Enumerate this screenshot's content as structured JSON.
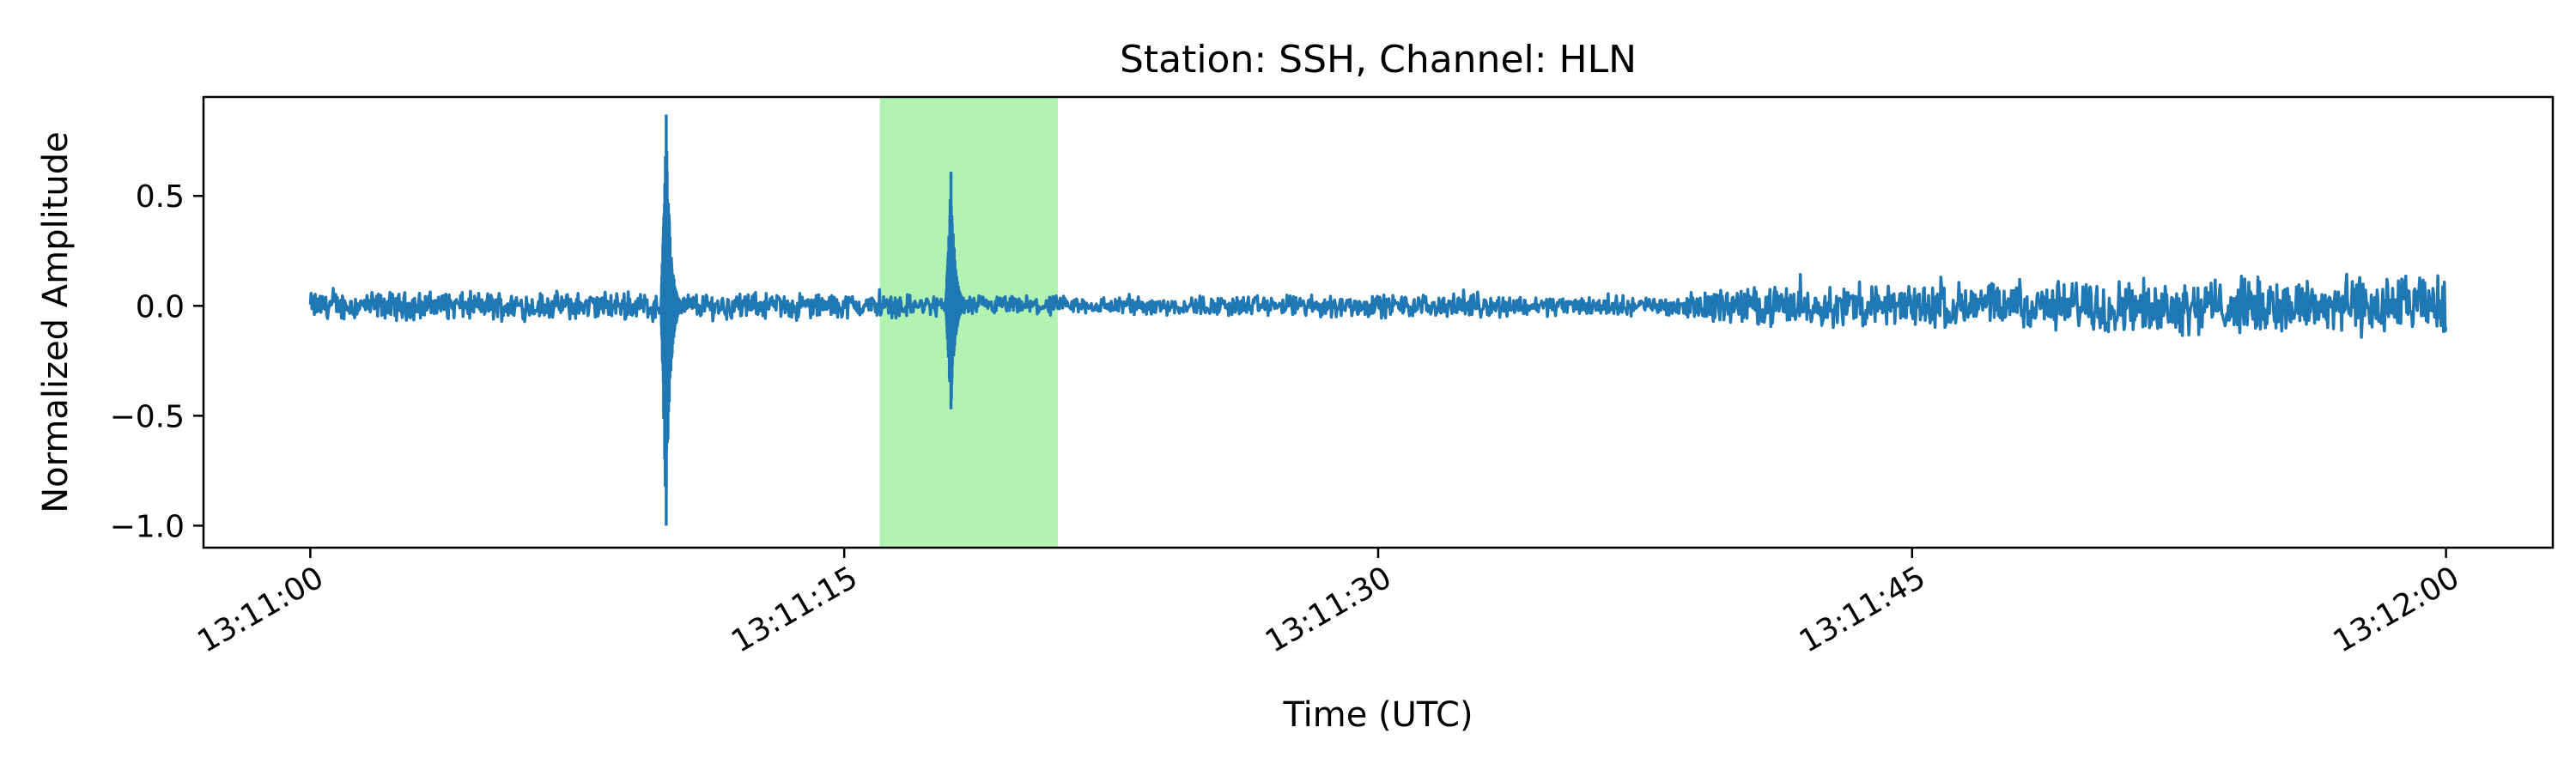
{
  "chart_data": {
    "type": "line",
    "title": "Station: SSH, Channel: HLN",
    "xlabel": "Time (UTC)",
    "ylabel": "Normalized Amplitude",
    "x_range": [
      "13:11:00",
      "13:12:00"
    ],
    "xlim": [
      "13:10:57",
      "13:12:03"
    ],
    "ylim": [
      -1.1,
      0.95
    ],
    "x_ticks": [
      "13:11:00",
      "13:11:15",
      "13:11:30",
      "13:11:45",
      "13:12:00"
    ],
    "y_ticks": [
      0.5,
      0.0,
      -0.5,
      -1.0
    ],
    "y_tick_labels": [
      "0.5",
      "0.0",
      "−0.5",
      "−1.0"
    ],
    "grid": false,
    "highlight_window": {
      "start": "13:11:16",
      "end": "13:11:21",
      "color": "#b2f2b2"
    },
    "series": [
      {
        "color": "#1f77b4",
        "envelope": [
          {
            "t": "13:11:00",
            "amplitude": 0.06
          },
          {
            "t": "13:11:10",
            "amplitude": 0.06
          },
          {
            "t": "13:11:16",
            "amplitude": 0.05
          },
          {
            "t": "13:11:22",
            "amplitude": 0.04
          },
          {
            "t": "13:11:30",
            "amplitude": 0.05
          },
          {
            "t": "13:11:38",
            "amplitude": 0.04
          },
          {
            "t": "13:11:40",
            "amplitude": 0.08
          },
          {
            "t": "13:11:50",
            "amplitude": 0.11
          },
          {
            "t": "13:11:58",
            "amplitude": 0.13
          },
          {
            "t": "13:12:00",
            "amplitude": 0.13
          }
        ],
        "events": [
          {
            "t": "13:11:10",
            "max": 0.87,
            "min": -1.0
          },
          {
            "t": "13:11:18",
            "max": 0.61,
            "min": -0.47
          }
        ]
      }
    ]
  }
}
